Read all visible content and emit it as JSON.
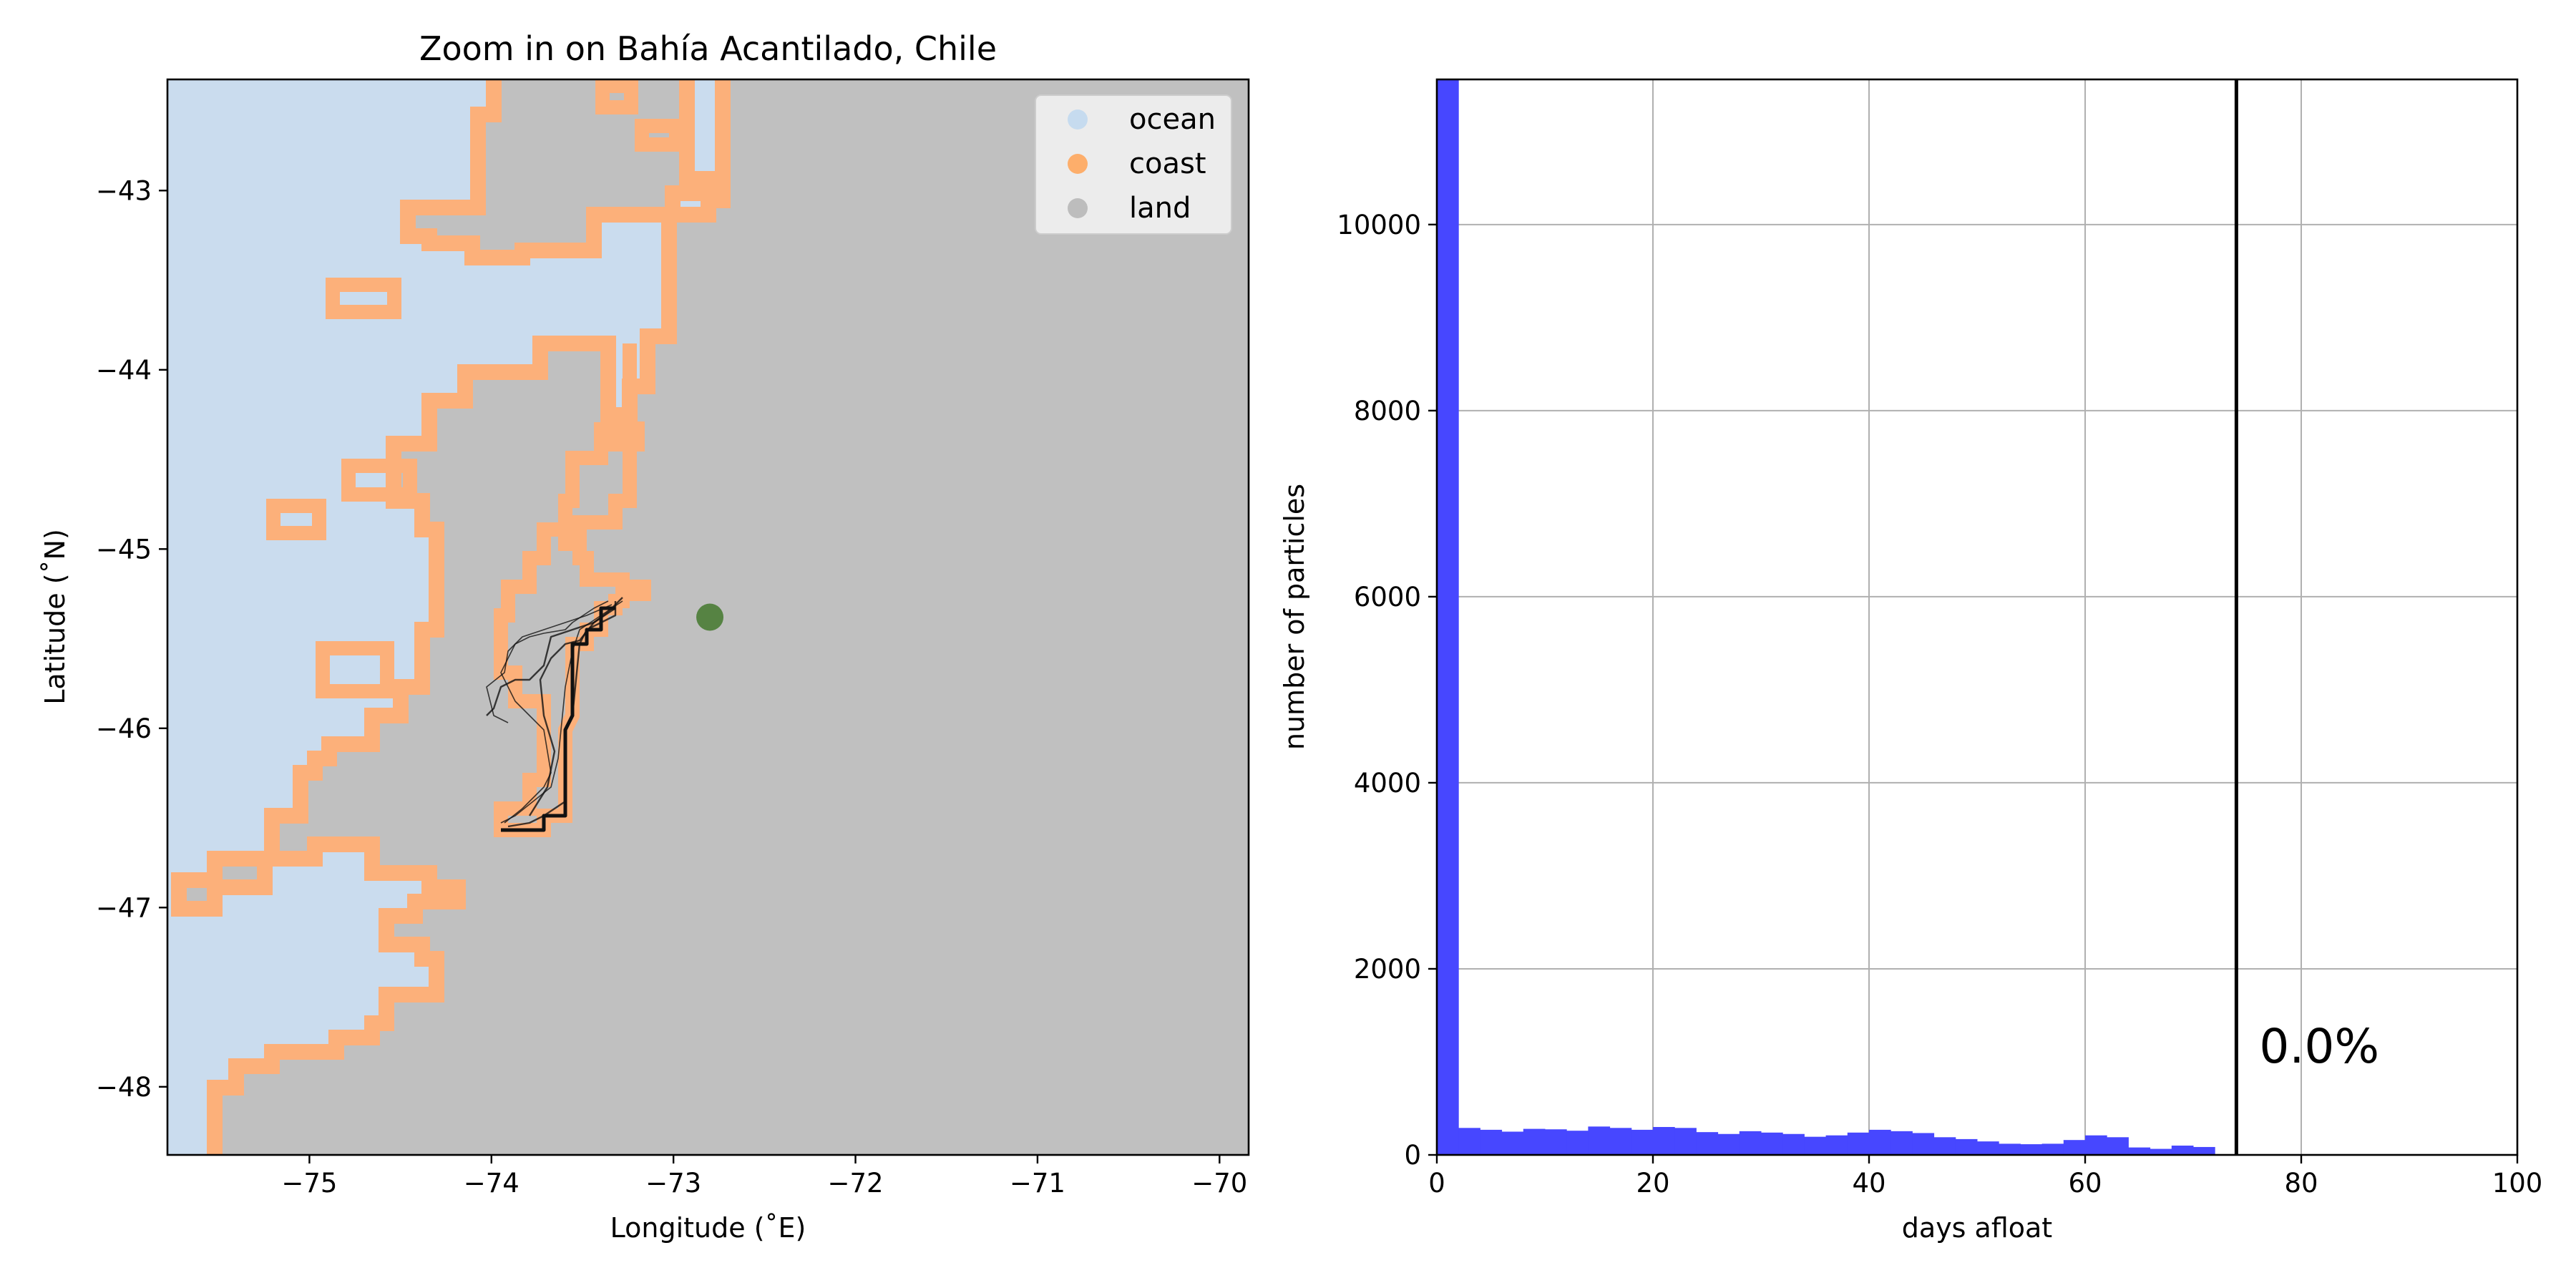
{
  "chart_data": [
    {
      "type": "map",
      "title": "Zoom in on Bahía Acantilado, Chile",
      "xlabel": "Longitude (˚E)",
      "ylabel": "Latitude (˚N)",
      "xlim": [
        -75.78,
        -69.84
      ],
      "ylim": [
        -48.38,
        -42.38
      ],
      "xticks": [
        -75,
        -74,
        -73,
        -72,
        -71,
        -70
      ],
      "yticks": [
        -43,
        -44,
        -45,
        -46,
        -47,
        -48
      ],
      "xtick_labels": [
        "−75",
        "−74",
        "−73",
        "−72",
        "−71",
        "−70"
      ],
      "ytick_labels": [
        "−43",
        "−44",
        "−45",
        "−46",
        "−47",
        "−48"
      ],
      "legend": {
        "placement": "top-right",
        "entries": [
          {
            "label": "ocean",
            "color": "#c6dbef"
          },
          {
            "label": "coast",
            "color": "#fdae6b"
          },
          {
            "label": "land",
            "color": "#bdbdbd"
          }
        ]
      },
      "colors": {
        "ocean": "#cadcee",
        "land": "#c0c0c0",
        "coast": "#fcb07a",
        "release_point": "#4a7c35"
      },
      "release_point": {
        "lon": -72.8,
        "lat": -45.38
      }
    },
    {
      "type": "bar",
      "title": "",
      "xlabel": "days afloat",
      "ylabel": "number of particles",
      "xlim": [
        0,
        100
      ],
      "ylim": [
        0,
        11560
      ],
      "xticks": [
        0,
        20,
        40,
        60,
        80,
        100
      ],
      "yticks": [
        0,
        2000,
        4000,
        6000,
        8000,
        10000
      ],
      "grid": true,
      "bar_color": "#4747ff",
      "bin_width": 2,
      "bin_starts": [
        0,
        2,
        4,
        6,
        8,
        10,
        12,
        14,
        16,
        18,
        20,
        22,
        24,
        26,
        28,
        30,
        32,
        34,
        36,
        38,
        40,
        42,
        44,
        46,
        48,
        50,
        52,
        54,
        56,
        58,
        60,
        62,
        64,
        66,
        68,
        70
      ],
      "values": [
        11560,
        290,
        270,
        250,
        280,
        275,
        260,
        305,
        290,
        270,
        300,
        290,
        245,
        225,
        255,
        240,
        225,
        195,
        210,
        240,
        270,
        255,
        235,
        190,
        170,
        145,
        120,
        115,
        120,
        160,
        210,
        190,
        80,
        65,
        100,
        85
      ],
      "vline_x": 74,
      "annotation": "0.0%"
    }
  ]
}
